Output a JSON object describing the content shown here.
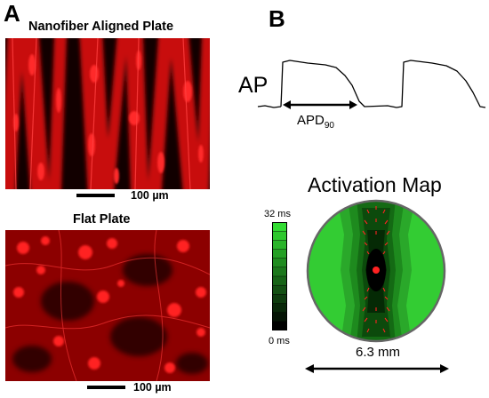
{
  "panel_a": {
    "letter": "A",
    "top_title": "Nanofiber Aligned Plate",
    "top_scale": "100 µm",
    "bottom_title": "Flat Plate",
    "bottom_scale": "100 µm",
    "image_colors": {
      "signal": "#ff1a1a",
      "background": "#000000"
    }
  },
  "panel_b": {
    "letter": "B",
    "ap_label": "AP",
    "apd_label_main": "APD",
    "apd_label_sub": "90",
    "map_title": "Activation Map",
    "colorbar_max": "32 ms",
    "colorbar_min": "0 ms",
    "dimension_label": "6.3 mm",
    "colors": {
      "map_green": "#33cc33",
      "map_dark": "#000000",
      "vectors": "#ff2222"
    }
  }
}
